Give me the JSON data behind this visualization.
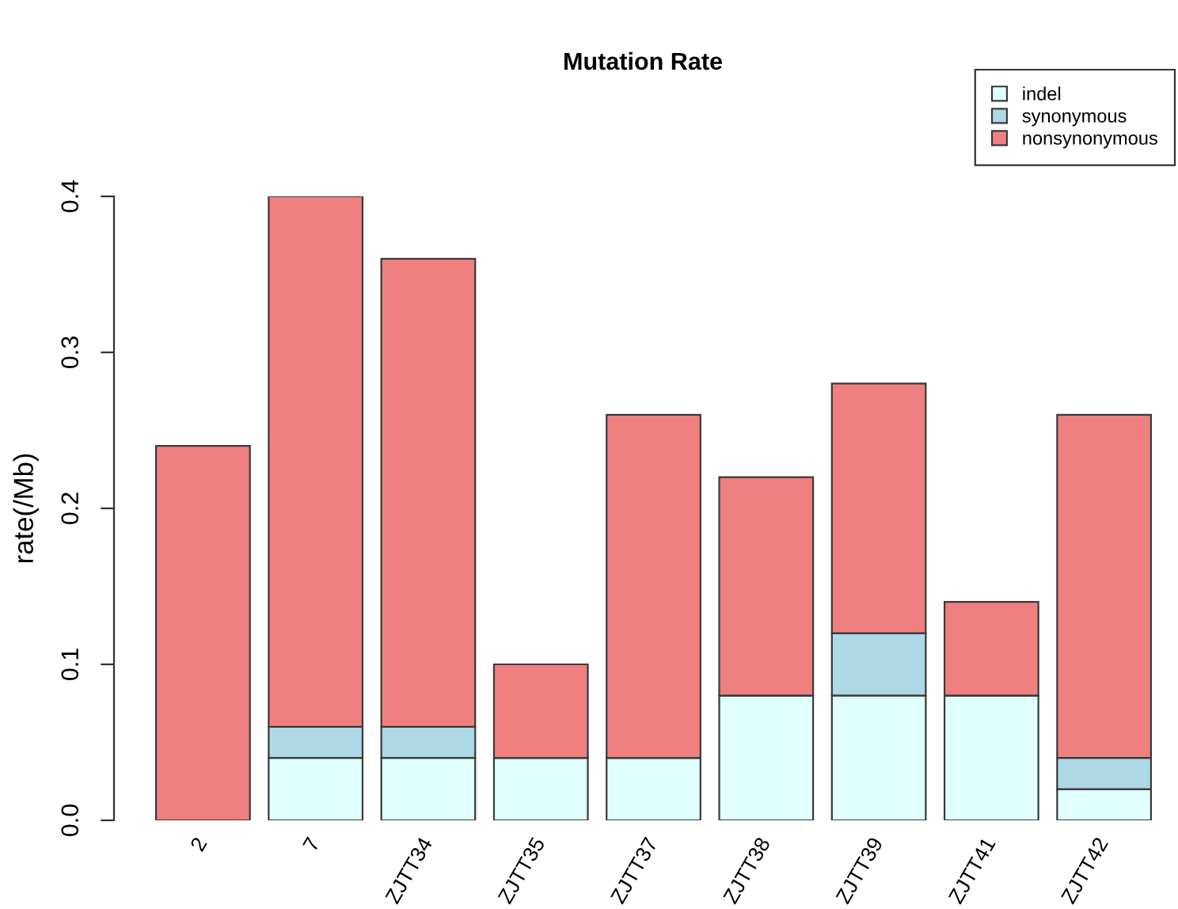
{
  "chart_data": {
    "type": "bar",
    "title": "Mutation Rate",
    "ylabel": "rate(/Mb)",
    "categories": [
      "2",
      "7",
      "ZJTT34",
      "ZJTT35",
      "ZJTT37",
      "ZJTT38",
      "ZJTT39",
      "ZJTT41",
      "ZJTT42"
    ],
    "stacked": true,
    "series": [
      {
        "name": "indel",
        "color": "#e0ffff",
        "values": [
          0,
          0.04,
          0.04,
          0.04,
          0.04,
          0.08,
          0.08,
          0.08,
          0.02
        ]
      },
      {
        "name": "synonymous",
        "color": "#add8e6",
        "values": [
          0,
          0.02,
          0.02,
          0,
          0,
          0,
          0.04,
          0,
          0.02
        ]
      },
      {
        "name": "nonsynonymous",
        "color": "#f08080",
        "values": [
          0.24,
          0.34,
          0.3,
          0.06,
          0.22,
          0.14,
          0.16,
          0.06,
          0.22
        ]
      }
    ],
    "ylim": [
      0,
      0.4
    ],
    "yticks": [
      {
        "value": 0,
        "label": "0.0"
      },
      0.1,
      0.2,
      0.3,
      0.4
    ],
    "grid": false,
    "legend": "top right"
  }
}
